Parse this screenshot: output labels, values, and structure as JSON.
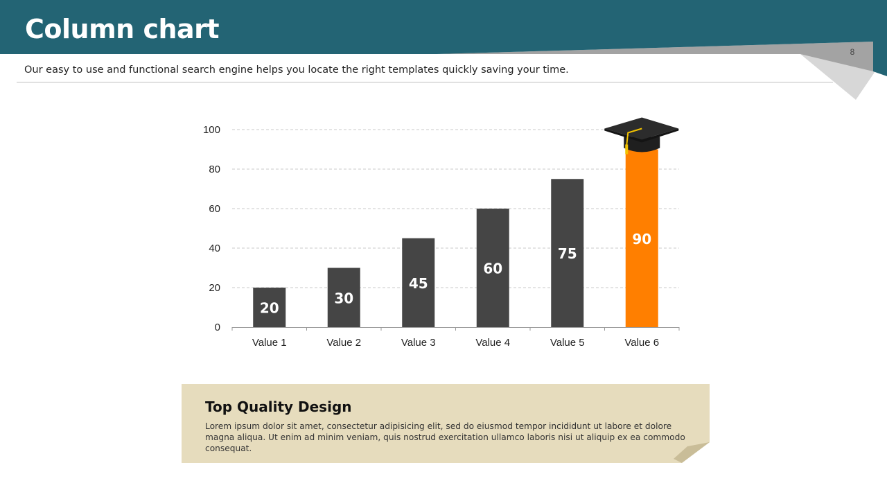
{
  "header": {
    "title": "Column chart",
    "page_number": "8",
    "subtitle": "Our easy to use and functional search engine helps you locate the right templates quickly saving your time.",
    "colors": {
      "banner": "#236474",
      "fold_light": "#d7d7d7",
      "fold_dark": "#a3a3a3"
    }
  },
  "chart_data": {
    "type": "bar",
    "categories": [
      "Value 1",
      "Value 2",
      "Value 3",
      "Value 4",
      "Value 5",
      "Value 6"
    ],
    "values": [
      20,
      30,
      45,
      60,
      75,
      90
    ],
    "data_labels": [
      "20",
      "30",
      "45",
      "60",
      "75",
      "90"
    ],
    "yticks": [
      "0",
      "20",
      "40",
      "60",
      "80",
      "100"
    ],
    "ylim": [
      0,
      100
    ],
    "grid": true,
    "title": "",
    "xlabel": "",
    "ylabel": "",
    "colors": {
      "bar": "#454545",
      "highlight": "#ff7f00",
      "grid": "#c8c8c8"
    },
    "highlight_index": 5,
    "decoration": "graduation-cap-icon"
  },
  "info_box": {
    "title": "Top Quality Design",
    "text": "Lorem ipsum dolor sit amet, consectetur adipisicing elit, sed do eiusmod tempor incididunt ut labore et dolore magna aliqua. Ut enim ad minim veniam, quis nostrud exercitation ullamco laboris nisi ut aliquip ex ea commodo consequat.",
    "colors": {
      "background": "#e6dcbd",
      "fold": "#c9bd98"
    }
  }
}
